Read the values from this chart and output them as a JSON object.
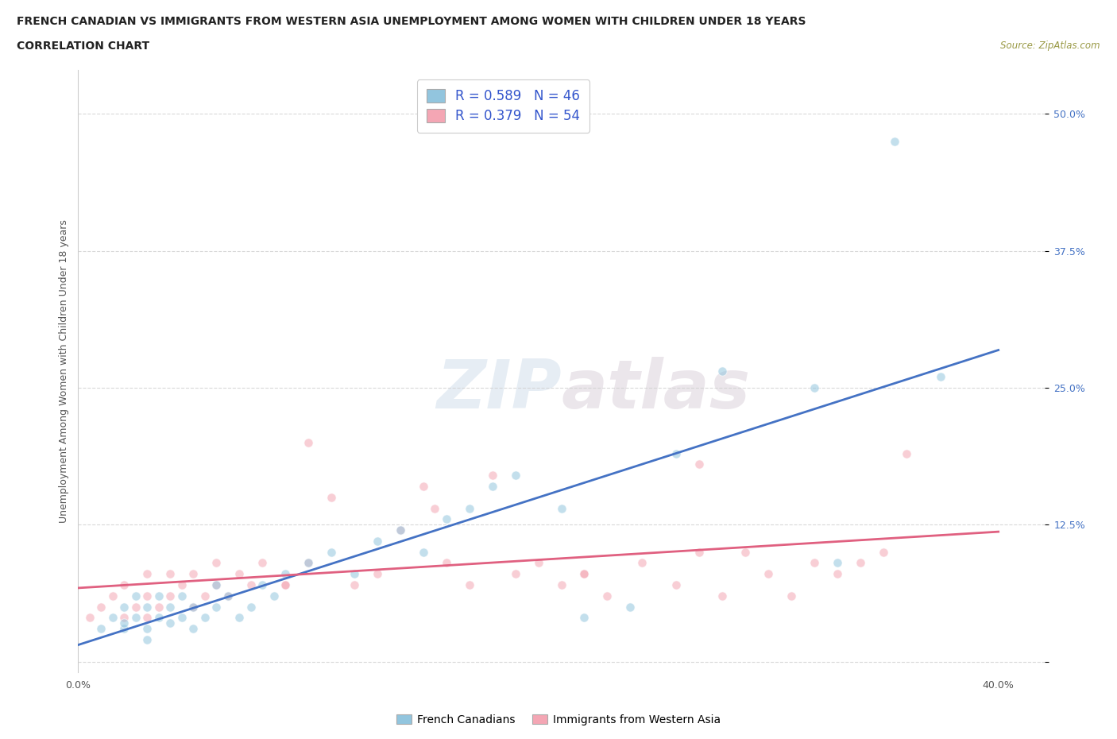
{
  "title_line1": "FRENCH CANADIAN VS IMMIGRANTS FROM WESTERN ASIA UNEMPLOYMENT AMONG WOMEN WITH CHILDREN UNDER 18 YEARS",
  "title_line2": "CORRELATION CHART",
  "source": "Source: ZipAtlas.com",
  "ylabel": "Unemployment Among Women with Children Under 18 years",
  "xlim": [
    0.0,
    0.42
  ],
  "ylim": [
    -0.01,
    0.54
  ],
  "xticks": [
    0.0,
    0.1,
    0.2,
    0.3,
    0.4
  ],
  "xticklabels": [
    "0.0%",
    "",
    "",
    "",
    "40.0%"
  ],
  "yticks": [
    0.0,
    0.125,
    0.25,
    0.375,
    0.5
  ],
  "yticklabels": [
    "",
    "12.5%",
    "25.0%",
    "37.5%",
    "50.0%"
  ],
  "blue_R": 0.589,
  "blue_N": 46,
  "pink_R": 0.379,
  "pink_N": 54,
  "blue_color": "#92c5de",
  "pink_color": "#f4a6b4",
  "blue_line_color": "#4472c4",
  "pink_line_color": "#e06080",
  "background_color": "#ffffff",
  "grid_color": "#d0d0d0",
  "blue_scatter_x": [
    0.01,
    0.015,
    0.02,
    0.02,
    0.02,
    0.025,
    0.025,
    0.03,
    0.03,
    0.03,
    0.035,
    0.035,
    0.04,
    0.04,
    0.045,
    0.045,
    0.05,
    0.05,
    0.055,
    0.06,
    0.06,
    0.065,
    0.07,
    0.075,
    0.08,
    0.085,
    0.09,
    0.1,
    0.11,
    0.12,
    0.13,
    0.14,
    0.15,
    0.16,
    0.17,
    0.18,
    0.19,
    0.21,
    0.22,
    0.24,
    0.26,
    0.28,
    0.32,
    0.33,
    0.355,
    0.375
  ],
  "blue_scatter_y": [
    0.03,
    0.04,
    0.03,
    0.05,
    0.035,
    0.04,
    0.06,
    0.03,
    0.05,
    0.02,
    0.04,
    0.06,
    0.035,
    0.05,
    0.04,
    0.06,
    0.03,
    0.05,
    0.04,
    0.05,
    0.07,
    0.06,
    0.04,
    0.05,
    0.07,
    0.06,
    0.08,
    0.09,
    0.1,
    0.08,
    0.11,
    0.12,
    0.1,
    0.13,
    0.14,
    0.16,
    0.17,
    0.14,
    0.04,
    0.05,
    0.19,
    0.265,
    0.25,
    0.09,
    0.475,
    0.26
  ],
  "pink_scatter_x": [
    0.005,
    0.01,
    0.015,
    0.02,
    0.02,
    0.025,
    0.03,
    0.03,
    0.03,
    0.035,
    0.04,
    0.04,
    0.045,
    0.05,
    0.05,
    0.055,
    0.06,
    0.06,
    0.065,
    0.07,
    0.075,
    0.08,
    0.09,
    0.1,
    0.11,
    0.12,
    0.13,
    0.14,
    0.15,
    0.16,
    0.17,
    0.18,
    0.19,
    0.2,
    0.21,
    0.22,
    0.23,
    0.245,
    0.26,
    0.27,
    0.28,
    0.29,
    0.3,
    0.31,
    0.32,
    0.33,
    0.34,
    0.35,
    0.36,
    0.22,
    0.27,
    0.1,
    0.155,
    0.09
  ],
  "pink_scatter_y": [
    0.04,
    0.05,
    0.06,
    0.04,
    0.07,
    0.05,
    0.04,
    0.06,
    0.08,
    0.05,
    0.06,
    0.08,
    0.07,
    0.05,
    0.08,
    0.06,
    0.07,
    0.09,
    0.06,
    0.08,
    0.07,
    0.09,
    0.07,
    0.09,
    0.15,
    0.07,
    0.08,
    0.12,
    0.16,
    0.09,
    0.07,
    0.17,
    0.08,
    0.09,
    0.07,
    0.08,
    0.06,
    0.09,
    0.07,
    0.1,
    0.06,
    0.1,
    0.08,
    0.06,
    0.09,
    0.08,
    0.09,
    0.1,
    0.19,
    0.08,
    0.18,
    0.2,
    0.14,
    0.07
  ]
}
